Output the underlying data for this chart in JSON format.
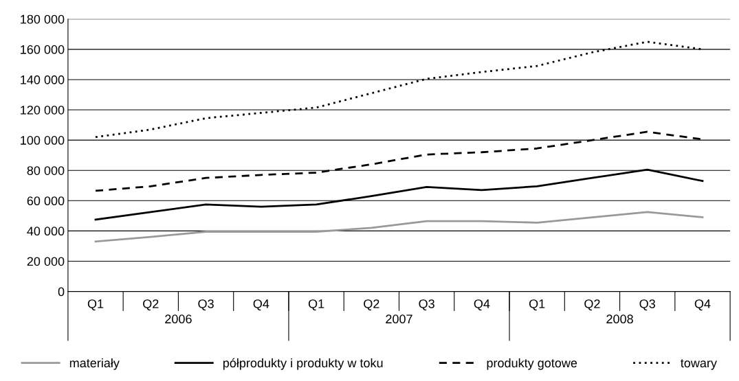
{
  "chart_data": {
    "type": "line",
    "categories": [
      "Q1",
      "Q2",
      "Q3",
      "Q4",
      "Q1",
      "Q2",
      "Q3",
      "Q4",
      "Q1",
      "Q2",
      "Q3",
      "Q4"
    ],
    "annotations": [
      "2006",
      "2007",
      "2008"
    ],
    "series": [
      {
        "name": "materiały",
        "color": "#999999",
        "line_style": "solid",
        "values": [
          33000,
          36000,
          39500,
          39500,
          39500,
          42000,
          46500,
          46500,
          45500,
          49000,
          52500,
          49000
        ]
      },
      {
        "name": "półprodukty i produkty w toku",
        "color": "#000000",
        "line_style": "solid",
        "values": [
          47500,
          52500,
          57500,
          56000,
          57500,
          63000,
          69000,
          67000,
          69500,
          75000,
          80500,
          73000
        ]
      },
      {
        "name": "produkty gotowe",
        "color": "#000000",
        "line_style": "dashed",
        "values": [
          66500,
          69500,
          75000,
          77000,
          78500,
          84000,
          90500,
          92000,
          94500,
          100000,
          105500,
          100500
        ]
      },
      {
        "name": "towary",
        "color": "#000000",
        "line_style": "dotted",
        "values": [
          102000,
          107000,
          114500,
          118000,
          121500,
          131000,
          140500,
          145000,
          149000,
          158000,
          165000,
          160000
        ]
      }
    ],
    "ylim": [
      0,
      180000
    ],
    "yticks": [
      {
        "value": 0,
        "label": "0"
      },
      {
        "value": 20000,
        "label": "20 000"
      },
      {
        "value": 40000,
        "label": "40 000"
      },
      {
        "value": 60000,
        "label": "60 000"
      },
      {
        "value": 80000,
        "label": "80 000"
      },
      {
        "value": 100000,
        "label": "100 000"
      },
      {
        "value": 120000,
        "label": "120 000"
      },
      {
        "value": 140000,
        "label": "140 000"
      },
      {
        "value": 160000,
        "label": "160 000"
      },
      {
        "value": 180000,
        "label": "180 000"
      }
    ],
    "grid": "y",
    "legend": "bottom",
    "marker": "none"
  }
}
